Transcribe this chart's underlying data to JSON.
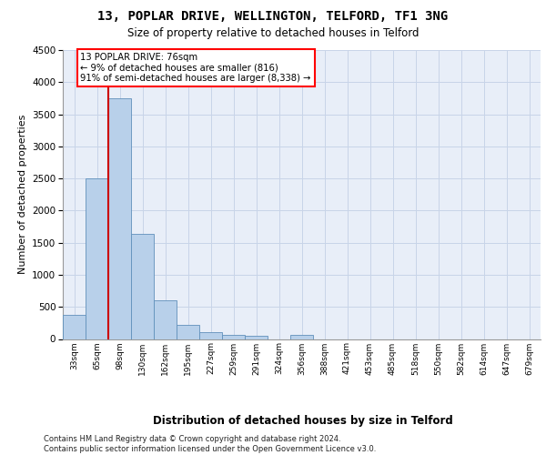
{
  "title_line1": "13, POPLAR DRIVE, WELLINGTON, TELFORD, TF1 3NG",
  "title_line2": "Size of property relative to detached houses in Telford",
  "xlabel": "Distribution of detached houses by size in Telford",
  "ylabel": "Number of detached properties",
  "categories": [
    "33sqm",
    "65sqm",
    "98sqm",
    "130sqm",
    "162sqm",
    "195sqm",
    "227sqm",
    "259sqm",
    "291sqm",
    "324sqm",
    "356sqm",
    "388sqm",
    "421sqm",
    "453sqm",
    "485sqm",
    "518sqm",
    "550sqm",
    "582sqm",
    "614sqm",
    "647sqm",
    "679sqm"
  ],
  "values": [
    370,
    2500,
    3750,
    1640,
    600,
    225,
    110,
    65,
    45,
    0,
    65,
    0,
    0,
    0,
    0,
    0,
    0,
    0,
    0,
    0,
    0
  ],
  "bar_color": "#b8d0ea",
  "bar_edge_color": "#6090bb",
  "grid_color": "#c8d4e8",
  "background_color": "#e8eef8",
  "annotation_line1": "13 POPLAR DRIVE: 76sqm",
  "annotation_line2": "← 9% of detached houses are smaller (816)",
  "annotation_line3": "91% of semi-detached houses are larger (8,338) →",
  "vline_color": "#cc0000",
  "vline_x": 1.5,
  "ylim_max": 4500,
  "yticks": [
    0,
    500,
    1000,
    1500,
    2000,
    2500,
    3000,
    3500,
    4000,
    4500
  ],
  "footnote": "Contains HM Land Registry data © Crown copyright and database right 2024.\nContains public sector information licensed under the Open Government Licence v3.0."
}
